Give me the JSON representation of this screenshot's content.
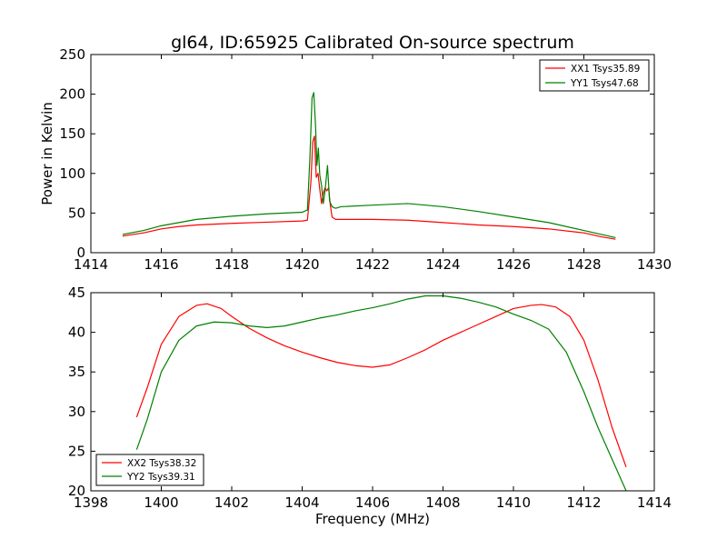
{
  "chart_data": [
    {
      "type": "line",
      "title": "gl64, ID:65925 Calibrated On-source spectrum",
      "xlabel": "",
      "ylabel": "Power in Kelvin",
      "xlim": [
        1414,
        1430
      ],
      "ylim": [
        0,
        250
      ],
      "xticks": [
        "1414",
        "1416",
        "1418",
        "1420",
        "1422",
        "1424",
        "1426",
        "1428",
        "1430"
      ],
      "yticks": [
        "0",
        "50",
        "100",
        "150",
        "200",
        "250"
      ],
      "grid": false,
      "legend_position": "top-right",
      "series": [
        {
          "name": "XX1 Tsys35.89",
          "color": "#ff0000",
          "x": [
            1414.9,
            1415.5,
            1416.0,
            1416.5,
            1417.0,
            1418.0,
            1419.0,
            1420.0,
            1420.15,
            1420.25,
            1420.3,
            1420.35,
            1420.4,
            1420.45,
            1420.5,
            1420.55,
            1420.6,
            1420.65,
            1420.7,
            1420.75,
            1420.8,
            1420.85,
            1420.95,
            1421.2,
            1422.0,
            1423.0,
            1424.0,
            1425.0,
            1426.0,
            1427.0,
            1428.0,
            1428.5,
            1428.9
          ],
          "y": [
            21,
            25,
            30,
            33,
            35,
            37,
            38.5,
            40,
            41,
            90,
            140,
            147,
            95,
            100,
            80,
            62,
            75,
            82,
            78,
            82,
            60,
            45,
            42,
            42,
            42,
            41,
            38,
            35,
            33,
            30,
            25,
            20,
            17
          ]
        },
        {
          "name": "YY1 Tsys47.68",
          "color": "#008000",
          "x": [
            1414.9,
            1415.5,
            1416.0,
            1416.5,
            1417.0,
            1418.0,
            1419.0,
            1420.0,
            1420.15,
            1420.22,
            1420.28,
            1420.33,
            1420.38,
            1420.42,
            1420.46,
            1420.5,
            1420.55,
            1420.6,
            1420.65,
            1420.72,
            1420.78,
            1420.85,
            1420.95,
            1421.1,
            1422.0,
            1423.0,
            1424.0,
            1425.0,
            1426.0,
            1427.0,
            1428.0,
            1428.5,
            1428.9
          ],
          "y": [
            23,
            28,
            34,
            38,
            42,
            46,
            49,
            51,
            54,
            120,
            195,
            202,
            160,
            110,
            132,
            98,
            85,
            62,
            78,
            110,
            65,
            58,
            56,
            58,
            60,
            62,
            58,
            52,
            45,
            38,
            28,
            23,
            19
          ]
        }
      ]
    },
    {
      "type": "line",
      "title": "",
      "xlabel": "Frequency (MHz)",
      "ylabel": "",
      "xlim": [
        1398,
        1414
      ],
      "ylim": [
        20,
        45
      ],
      "xticks": [
        "1398",
        "1400",
        "1402",
        "1404",
        "1406",
        "1408",
        "1410",
        "1412",
        "1414"
      ],
      "yticks": [
        "20",
        "25",
        "30",
        "35",
        "40",
        "45"
      ],
      "grid": false,
      "legend_position": "bottom-left",
      "series": [
        {
          "name": "XX2 Tsys38.32",
          "color": "#ff0000",
          "x": [
            1399.3,
            1399.6,
            1400.0,
            1400.5,
            1401.0,
            1401.3,
            1401.7,
            1402.0,
            1402.5,
            1403.0,
            1403.5,
            1404.0,
            1404.5,
            1405.0,
            1405.5,
            1406.0,
            1406.5,
            1407.0,
            1407.5,
            1408.0,
            1408.5,
            1409.0,
            1409.5,
            1410.0,
            1410.5,
            1410.8,
            1411.2,
            1411.6,
            1412.0,
            1412.4,
            1412.8,
            1413.2
          ],
          "y": [
            29.3,
            33,
            38.5,
            42,
            43.4,
            43.6,
            43,
            42,
            40.5,
            39.3,
            38.3,
            37.5,
            36.8,
            36.2,
            35.8,
            35.6,
            35.9,
            36.8,
            37.8,
            39,
            40,
            41,
            42,
            43,
            43.4,
            43.5,
            43.2,
            42,
            39,
            34,
            28,
            23
          ]
        },
        {
          "name": "YY2 Tsys39.31",
          "color": "#008000",
          "x": [
            1399.3,
            1399.6,
            1400.0,
            1400.5,
            1401.0,
            1401.5,
            1402.0,
            1402.5,
            1403.0,
            1403.5,
            1404.0,
            1404.5,
            1405.0,
            1405.5,
            1406.0,
            1406.5,
            1407.0,
            1407.5,
            1408.0,
            1408.5,
            1409.0,
            1409.5,
            1410.0,
            1410.5,
            1411.0,
            1411.5,
            1412.0,
            1412.4,
            1412.8,
            1413.2
          ],
          "y": [
            25.2,
            29,
            35,
            39,
            40.8,
            41.3,
            41.2,
            40.8,
            40.6,
            40.8,
            41.3,
            41.8,
            42.2,
            42.7,
            43.1,
            43.6,
            44.2,
            44.6,
            44.6,
            44.3,
            43.8,
            43.2,
            42.3,
            41.5,
            40.4,
            37.5,
            32.5,
            28,
            24,
            20
          ]
        }
      ]
    }
  ]
}
